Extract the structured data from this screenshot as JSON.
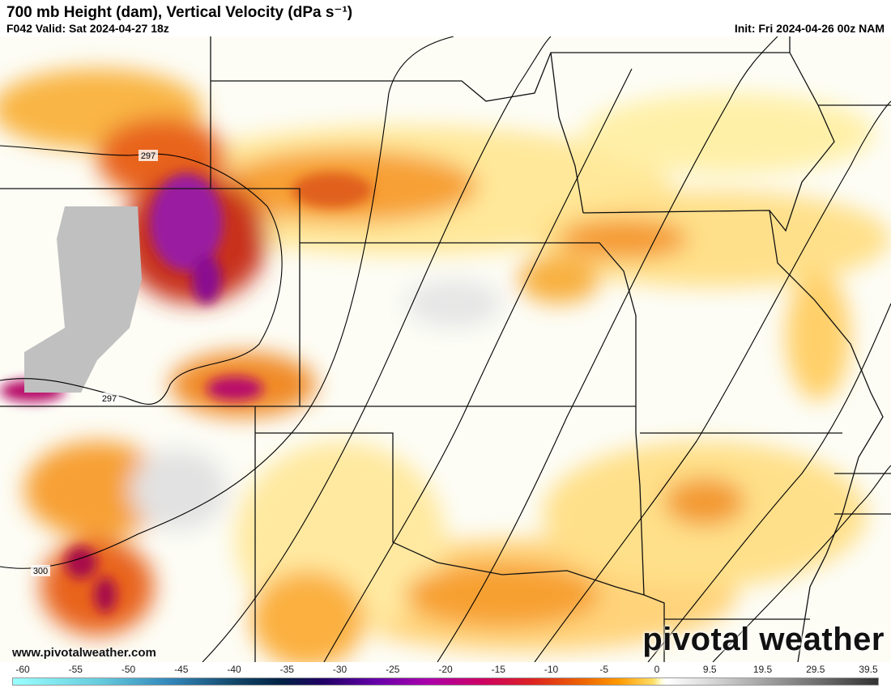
{
  "header": {
    "title": "700 mb Height (dam), Vertical Velocity (dPa s⁻¹)",
    "valid": "F042 Valid: Sat 2024-04-27 18z",
    "init": "Init: Fri 2024-04-26 00z NAM"
  },
  "map": {
    "contour_labels": [
      "297",
      "297",
      "300"
    ]
  },
  "footer": {
    "website": "www.pivotalweather.com",
    "brand": "pivotal weather"
  },
  "colorbar": {
    "ticks": [
      -60,
      -55,
      -50,
      -45,
      -40,
      -35,
      -30,
      -25,
      -20,
      -15,
      -10,
      -5,
      0,
      9.5,
      19.5,
      29.5,
      39.5
    ]
  }
}
